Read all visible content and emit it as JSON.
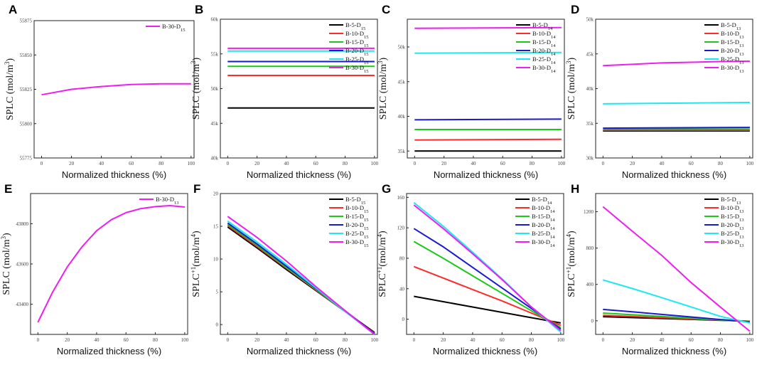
{
  "figure": {
    "xlabel": "Normalized thickness (%)",
    "x_ticks": [
      0,
      20,
      40,
      60,
      80,
      100
    ]
  },
  "colors": {
    "B-5": "#000000",
    "B-10": "#ff2a2a",
    "B-15": "#19c819",
    "B-20": "#1a1ad2",
    "B-25": "#1ce8f0",
    "B-30": "#ef1def"
  },
  "chart_data": [
    {
      "id": "A",
      "type": "line",
      "panel_label": "A",
      "ylabel": "SPLC (mol/m",
      "ylabel_sup": "3",
      "ylabel_end": ")",
      "ylim": [
        55775,
        55875
      ],
      "yticks": [
        55775,
        55800,
        55825,
        55850,
        55875
      ],
      "ytick_labels": [
        "55775",
        "55800",
        "55825",
        "55850",
        "55875"
      ],
      "legend_pos": "top-right",
      "series": [
        {
          "key": "B-30",
          "name": "B-30-D",
          "sub": "15",
          "x": [
            0,
            20,
            40,
            60,
            80,
            100
          ],
          "y": [
            55821,
            55825,
            55827,
            55828.5,
            55829,
            55829
          ]
        }
      ]
    },
    {
      "id": "B",
      "type": "line",
      "panel_label": "B",
      "ylabel": "SPLC (mol/m",
      "ylabel_sup": "3",
      "ylabel_end": ")",
      "ylim": [
        40000,
        60000
      ],
      "yticks": [
        40000,
        45000,
        50000,
        55000,
        60000
      ],
      "ytick_labels": [
        "40k",
        "45k",
        "50k",
        "55k",
        "60k"
      ],
      "legend_pos": "top-right",
      "series": [
        {
          "key": "B-5",
          "name": "B-5-D",
          "sub": "15",
          "x": [
            0,
            100
          ],
          "y": [
            47200,
            47200
          ]
        },
        {
          "key": "B-10",
          "name": "B-10-D",
          "sub": "15",
          "x": [
            0,
            100
          ],
          "y": [
            51900,
            51900
          ]
        },
        {
          "key": "B-15",
          "name": "B-15-D",
          "sub": "15",
          "x": [
            0,
            100
          ],
          "y": [
            53200,
            53200
          ]
        },
        {
          "key": "B-20",
          "name": "B-20-D",
          "sub": "15",
          "x": [
            0,
            100
          ],
          "y": [
            53900,
            53900
          ]
        },
        {
          "key": "B-25",
          "name": "B-25-D",
          "sub": "15",
          "x": [
            0,
            100
          ],
          "y": [
            55400,
            55400
          ]
        },
        {
          "key": "B-30",
          "name": "B-30-D",
          "sub": "15",
          "x": [
            0,
            100
          ],
          "y": [
            55800,
            55800
          ]
        }
      ]
    },
    {
      "id": "C",
      "type": "line",
      "panel_label": "C",
      "ylabel": "SPLC (mol/m",
      "ylabel_sup": "3",
      "ylabel_end": ")",
      "ylim": [
        34000,
        54000
      ],
      "yticks": [
        35000,
        40000,
        45000,
        50000
      ],
      "ytick_labels": [
        "35k",
        "40k",
        "45k",
        "50k"
      ],
      "legend_pos": "top-right",
      "series": [
        {
          "key": "B-5",
          "name": "B-5-D",
          "sub": "14",
          "x": [
            0,
            100
          ],
          "y": [
            35000,
            35000
          ]
        },
        {
          "key": "B-10",
          "name": "B-10-D",
          "sub": "14",
          "x": [
            0,
            100
          ],
          "y": [
            36600,
            36700
          ]
        },
        {
          "key": "B-15",
          "name": "B-15-D",
          "sub": "14",
          "x": [
            0,
            100
          ],
          "y": [
            38100,
            38100
          ]
        },
        {
          "key": "B-20",
          "name": "B-20-D",
          "sub": "14",
          "x": [
            0,
            100
          ],
          "y": [
            39500,
            39600
          ]
        },
        {
          "key": "B-25",
          "name": "B-25-D",
          "sub": "14",
          "x": [
            0,
            100
          ],
          "y": [
            49100,
            49200
          ]
        },
        {
          "key": "B-30",
          "name": "B-30-D",
          "sub": "14",
          "x": [
            0,
            100
          ],
          "y": [
            52700,
            52800
          ]
        }
      ]
    },
    {
      "id": "D",
      "type": "line",
      "panel_label": "D",
      "ylabel": "SPLC (mol/m",
      "ylabel_sup": "3",
      "ylabel_end": ")",
      "ylim": [
        30000,
        50000
      ],
      "yticks": [
        30000,
        35000,
        40000,
        45000,
        50000
      ],
      "ytick_labels": [
        "30k",
        "35k",
        "40k",
        "45k",
        "50k"
      ],
      "legend_pos": "top-right",
      "series": [
        {
          "key": "B-5",
          "name": "B-5-D",
          "sub": "13",
          "x": [
            0,
            100
          ],
          "y": [
            33900,
            33900
          ]
        },
        {
          "key": "B-10",
          "name": "B-10-D",
          "sub": "13",
          "x": [
            0,
            100
          ],
          "y": [
            34000,
            34000
          ]
        },
        {
          "key": "B-15",
          "name": "B-15-D",
          "sub": "13",
          "x": [
            0,
            100
          ],
          "y": [
            34150,
            34150
          ]
        },
        {
          "key": "B-20",
          "name": "B-20-D",
          "sub": "13",
          "x": [
            0,
            100
          ],
          "y": [
            34300,
            34400
          ]
        },
        {
          "key": "B-25",
          "name": "B-25-D",
          "sub": "13",
          "x": [
            0,
            100
          ],
          "y": [
            37800,
            38000
          ]
        },
        {
          "key": "B-30",
          "name": "B-30-D",
          "sub": "13",
          "x": [
            0,
            20,
            40,
            60,
            80,
            100
          ],
          "y": [
            43300,
            43500,
            43700,
            43800,
            43900,
            43950
          ]
        }
      ]
    },
    {
      "id": "E",
      "type": "line",
      "panel_label": "E",
      "ylabel": "SPLC (mol/m",
      "ylabel_sup": "3",
      "ylabel_end": ")",
      "ylim": [
        43250,
        43950
      ],
      "yticks": [
        43400,
        43600,
        43800
      ],
      "ytick_labels": [
        "43400",
        "43600",
        "43800"
      ],
      "legend_pos": "top-right",
      "series": [
        {
          "key": "B-30",
          "name": "B-30-D",
          "sub": "13",
          "x": [
            0,
            10,
            20,
            30,
            40,
            50,
            60,
            70,
            80,
            90,
            100
          ],
          "y": [
            43310,
            43460,
            43585,
            43685,
            43765,
            43820,
            43855,
            43875,
            43885,
            43890,
            43883
          ]
        }
      ]
    },
    {
      "id": "F",
      "type": "line",
      "panel_label": "F",
      "ylabel": "SPLC",
      "ylabel_sup": "+1",
      "ylabel_end": "(mol/m",
      "ylabel_sup2": "4",
      "ylabel_end2": ")",
      "ylim": [
        -1.5,
        20
      ],
      "yticks": [
        0,
        5,
        10,
        15,
        20
      ],
      "ytick_labels": [
        "0",
        "5",
        "10",
        "15",
        "20"
      ],
      "legend_pos": "top-right",
      "series": [
        {
          "key": "B-5",
          "name": "B-5-D",
          "sub": "15",
          "x": [
            0,
            20,
            40,
            60,
            80,
            100
          ],
          "y": [
            14.9,
            11.7,
            8.4,
            5.2,
            2.0,
            -1.2
          ]
        },
        {
          "key": "B-10",
          "name": "B-10-D",
          "sub": "15",
          "x": [
            0,
            20,
            40,
            60,
            80,
            100
          ],
          "y": [
            15.1,
            11.9,
            8.6,
            5.3,
            2.0,
            -1.3
          ]
        },
        {
          "key": "B-15",
          "name": "B-15-D",
          "sub": "15",
          "x": [
            0,
            20,
            40,
            60,
            80,
            100
          ],
          "y": [
            15.3,
            12.1,
            8.7,
            5.4,
            2.0,
            -1.4
          ]
        },
        {
          "key": "B-20",
          "name": "B-20-D",
          "sub": "15",
          "x": [
            0,
            20,
            40,
            60,
            80,
            100
          ],
          "y": [
            15.5,
            12.3,
            8.9,
            5.5,
            2.1,
            -1.4
          ]
        },
        {
          "key": "B-25",
          "name": "B-25-D",
          "sub": "15",
          "x": [
            0,
            20,
            40,
            60,
            80,
            100
          ],
          "y": [
            15.8,
            12.6,
            9.2,
            5.6,
            2.0,
            -1.5
          ]
        },
        {
          "key": "B-30",
          "name": "B-30-D",
          "sub": "15",
          "x": [
            0,
            20,
            40,
            60,
            80,
            100
          ],
          "y": [
            16.5,
            13.3,
            9.7,
            5.8,
            2.1,
            -1.5
          ]
        }
      ]
    },
    {
      "id": "G",
      "type": "line",
      "panel_label": "G",
      "ylabel": "SPLC",
      "ylabel_sup": "+1",
      "ylabel_end": "(mol/m",
      "ylabel_sup2": "4",
      "ylabel_end2": ")",
      "ylim": [
        -20,
        165
      ],
      "yticks": [
        0,
        40,
        80,
        120,
        160
      ],
      "ytick_labels": [
        "0",
        "40",
        "80",
        "120",
        "160"
      ],
      "legend_pos": "top-right",
      "series": [
        {
          "key": "B-5",
          "name": "B-5-D",
          "sub": "14",
          "x": [
            0,
            20,
            40,
            60,
            80,
            100
          ],
          "y": [
            30,
            23,
            16,
            9,
            2,
            -5
          ]
        },
        {
          "key": "B-10",
          "name": "B-10-D",
          "sub": "14",
          "x": [
            0,
            20,
            40,
            60,
            80,
            100
          ],
          "y": [
            69,
            54,
            39,
            24,
            8,
            -8
          ]
        },
        {
          "key": "B-15",
          "name": "B-15-D",
          "sub": "14",
          "x": [
            0,
            20,
            40,
            60,
            80,
            100
          ],
          "y": [
            102,
            80,
            57,
            34,
            11,
            -11
          ]
        },
        {
          "key": "B-20",
          "name": "B-20-D",
          "sub": "14",
          "x": [
            0,
            20,
            40,
            60,
            80,
            100
          ],
          "y": [
            119,
            95,
            68,
            41,
            14,
            -13
          ]
        },
        {
          "key": "B-25",
          "name": "B-25-D",
          "sub": "14",
          "x": [
            0,
            20,
            40,
            60,
            80,
            100
          ],
          "y": [
            153,
            122,
            88,
            53,
            16,
            -17
          ]
        },
        {
          "key": "B-30",
          "name": "B-30-D",
          "sub": "14",
          "x": [
            0,
            20,
            40,
            60,
            80,
            100
          ],
          "y": [
            150,
            119,
            86,
            52,
            16,
            -15
          ]
        }
      ]
    },
    {
      "id": "H",
      "type": "line",
      "panel_label": "H",
      "ylabel": "SPLC",
      "ylabel_sup": "+1",
      "ylabel_end": "(mol/m",
      "ylabel_sup2": "4",
      "ylabel_end2": ")",
      "ylim": [
        -150,
        1400
      ],
      "yticks": [
        0,
        400,
        800,
        1200
      ],
      "ytick_labels": [
        "0",
        "400",
        "800",
        "1200"
      ],
      "legend_pos": "top-right",
      "series": [
        {
          "key": "B-5",
          "name": "B-5-D",
          "sub": "13",
          "x": [
            0,
            20,
            40,
            60,
            80,
            100
          ],
          "y": [
            45,
            35,
            25,
            15,
            5,
            -5
          ]
        },
        {
          "key": "B-10",
          "name": "B-10-D",
          "sub": "13",
          "x": [
            0,
            20,
            40,
            60,
            80,
            100
          ],
          "y": [
            60,
            47,
            34,
            20,
            7,
            -6
          ]
        },
        {
          "key": "B-15",
          "name": "B-15-D",
          "sub": "13",
          "x": [
            0,
            20,
            40,
            60,
            80,
            100
          ],
          "y": [
            85,
            66,
            47,
            28,
            9,
            -8
          ]
        },
        {
          "key": "B-20",
          "name": "B-20-D",
          "sub": "13",
          "x": [
            0,
            20,
            40,
            60,
            80,
            100
          ],
          "y": [
            125,
            98,
            70,
            42,
            14,
            -12
          ]
        },
        {
          "key": "B-25",
          "name": "B-25-D",
          "sub": "13",
          "x": [
            0,
            20,
            40,
            60,
            80,
            100
          ],
          "y": [
            450,
            355,
            255,
            152,
            48,
            -25
          ]
        },
        {
          "key": "B-30",
          "name": "B-30-D",
          "sub": "13",
          "x": [
            0,
            20,
            40,
            60,
            80,
            100
          ],
          "y": [
            1255,
            985,
            720,
            420,
            150,
            -115
          ]
        }
      ]
    }
  ]
}
